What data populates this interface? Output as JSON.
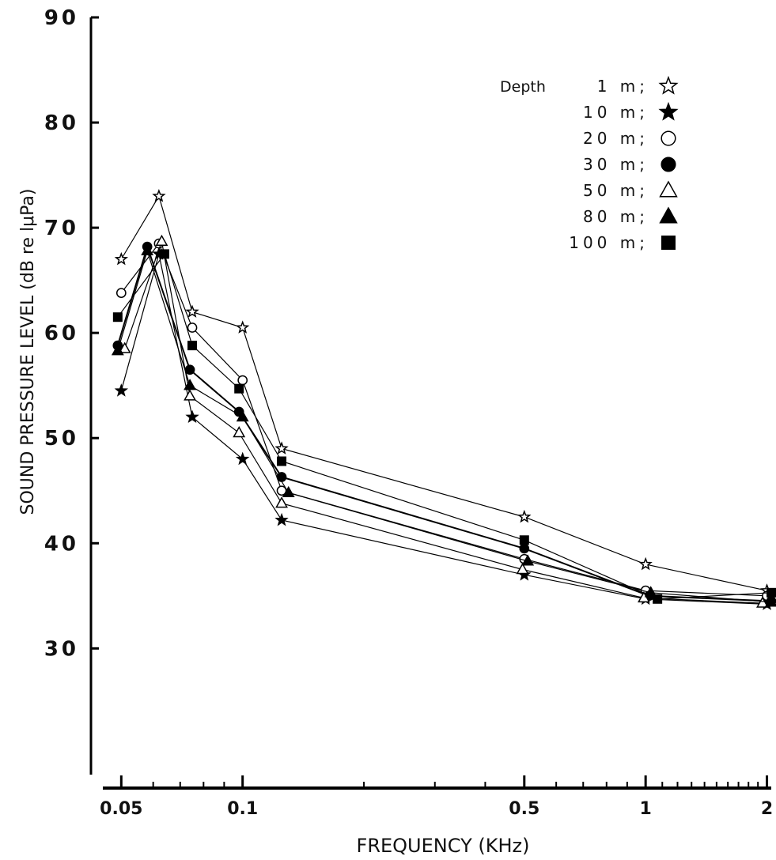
{
  "chart_data": {
    "type": "line",
    "xlabel": "FREQUENCY (KHz)",
    "ylabel": "SOUND PRESSURE LEVEL (dB re lμPa)",
    "x_scale": "log",
    "xlim": [
      0.045,
      2.05
    ],
    "ylim": [
      18,
      90
    ],
    "y_ticks": [
      30,
      40,
      50,
      60,
      70,
      80,
      90
    ],
    "x_ticks": [
      0.05,
      0.1,
      0.5,
      1,
      2
    ],
    "x_tick_labels": [
      "0.05",
      "0.1",
      "0.5",
      "1",
      "2"
    ],
    "legend_title": "Depth",
    "legend_position": "top-right",
    "series": [
      {
        "name": "1 m;",
        "marker": "star-open",
        "x": [
          0.05,
          0.062,
          0.075,
          0.1,
          0.125,
          0.5,
          1,
          2
        ],
        "y": [
          67,
          73,
          62,
          60.5,
          49,
          42.5,
          38,
          35.5
        ]
      },
      {
        "name": "10 m;",
        "marker": "star-filled",
        "x": [
          0.05,
          0.062,
          0.075,
          0.1,
          0.125,
          0.5,
          1,
          2
        ],
        "y": [
          54.5,
          67.5,
          52,
          48,
          42.2,
          37,
          34.7,
          34.2
        ]
      },
      {
        "name": "20 m;",
        "marker": "circle-open",
        "x": [
          0.05,
          0.062,
          0.075,
          0.1,
          0.125,
          0.5,
          1,
          2
        ],
        "y": [
          63.8,
          68.5,
          60.5,
          55.5,
          45,
          38.5,
          35.5,
          35
        ]
      },
      {
        "name": "30 m;",
        "marker": "circle-filled",
        "x": [
          0.049,
          0.058,
          0.074,
          0.098,
          0.125,
          0.5,
          1.02,
          2.05
        ],
        "y": [
          58.8,
          68.2,
          56.5,
          52.5,
          46.3,
          39.5,
          35,
          34.5
        ]
      },
      {
        "name": "50 m;",
        "marker": "triangle-open",
        "x": [
          0.051,
          0.063,
          0.074,
          0.098,
          0.125,
          0.495,
          0.99,
          1.95
        ],
        "y": [
          58.5,
          68.7,
          54,
          50.5,
          43.8,
          37.5,
          34.8,
          34.3
        ]
      },
      {
        "name": "80 m;",
        "marker": "triangle-filled",
        "x": [
          0.049,
          0.058,
          0.074,
          0.1,
          0.13,
          0.51,
          1.03,
          2.05
        ],
        "y": [
          58.3,
          67.8,
          55,
          52,
          44.8,
          38.3,
          35.3,
          34.4
        ]
      },
      {
        "name": "100 m;",
        "marker": "square-filled",
        "x": [
          0.049,
          0.064,
          0.075,
          0.098,
          0.125,
          0.5,
          1.07,
          2.05
        ],
        "y": [
          61.5,
          67.5,
          58.8,
          54.7,
          47.8,
          40.3,
          34.7,
          35.3
        ]
      }
    ]
  }
}
